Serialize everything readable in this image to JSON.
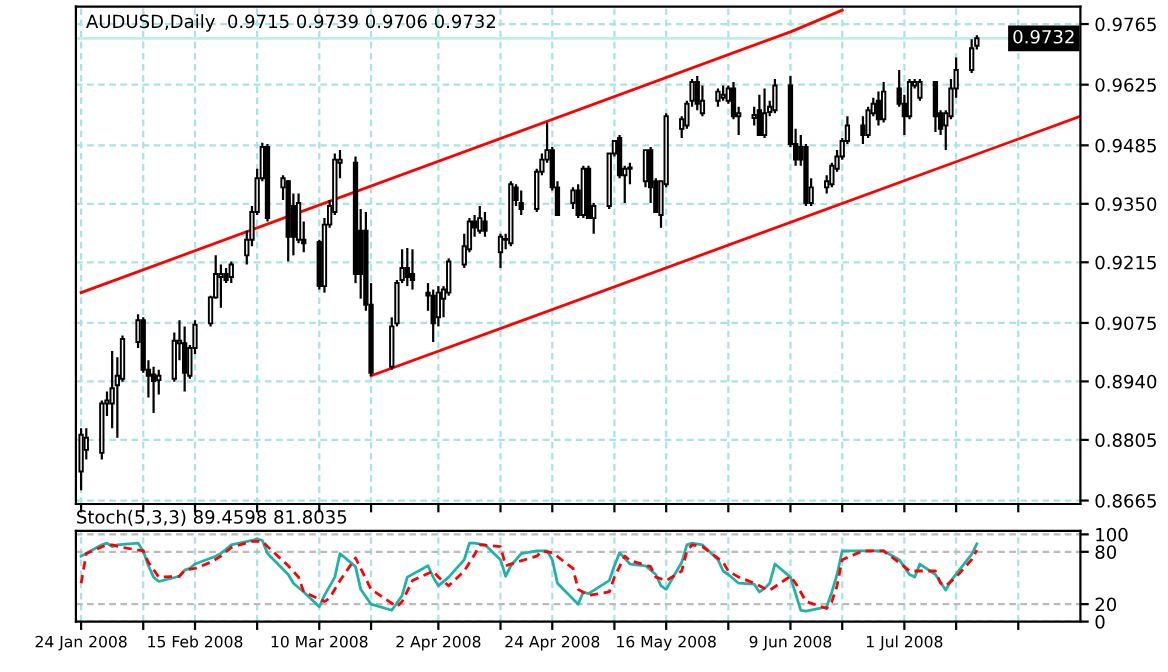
{
  "chart_data": [
    {
      "type": "candlestick",
      "title": "AUDUSD,Daily  0.9715 0.9739 0.9706 0.9732",
      "x": [
        "2008-01-24",
        "2008-01-25",
        "2008-01-28",
        "2008-01-29",
        "2008-01-30",
        "2008-01-31",
        "2008-02-01",
        "2008-02-04",
        "2008-02-05",
        "2008-02-06",
        "2008-02-07",
        "2008-02-08",
        "2008-02-11",
        "2008-02-12",
        "2008-02-13",
        "2008-02-14",
        "2008-02-15",
        "2008-02-18",
        "2008-02-19",
        "2008-02-20",
        "2008-02-21",
        "2008-02-22",
        "2008-02-25",
        "2008-02-26",
        "2008-02-27",
        "2008-02-28",
        "2008-02-29",
        "2008-03-03",
        "2008-03-04",
        "2008-03-05",
        "2008-03-06",
        "2008-03-07",
        "2008-03-10",
        "2008-03-11",
        "2008-03-12",
        "2008-03-13",
        "2008-03-14",
        "2008-03-17",
        "2008-03-18",
        "2008-03-19",
        "2008-03-20",
        "2008-03-24",
        "2008-03-25",
        "2008-03-26",
        "2008-03-27",
        "2008-03-28",
        "2008-03-31",
        "2008-04-01",
        "2008-04-02",
        "2008-04-03",
        "2008-04-04",
        "2008-04-07",
        "2008-04-08",
        "2008-04-09",
        "2008-04-10",
        "2008-04-11",
        "2008-04-14",
        "2008-04-15",
        "2008-04-16",
        "2008-04-17",
        "2008-04-18",
        "2008-04-21",
        "2008-04-22",
        "2008-04-23",
        "2008-04-24",
        "2008-04-25",
        "2008-04-28",
        "2008-04-29",
        "2008-04-30",
        "2008-05-01",
        "2008-05-02",
        "2008-05-05",
        "2008-05-06",
        "2008-05-07",
        "2008-05-08",
        "2008-05-09",
        "2008-05-12",
        "2008-05-13",
        "2008-05-14",
        "2008-05-15",
        "2008-05-16",
        "2008-05-19",
        "2008-05-20",
        "2008-05-21",
        "2008-05-22",
        "2008-05-23",
        "2008-05-26",
        "2008-05-27",
        "2008-05-28",
        "2008-05-29",
        "2008-05-30",
        "2008-06-02",
        "2008-06-03",
        "2008-06-04",
        "2008-06-05",
        "2008-06-06",
        "2008-06-09",
        "2008-06-10",
        "2008-06-11",
        "2008-06-12",
        "2008-06-13",
        "2008-06-16",
        "2008-06-17",
        "2008-06-18",
        "2008-06-19",
        "2008-06-20",
        "2008-06-23",
        "2008-06-24",
        "2008-06-25",
        "2008-06-26",
        "2008-06-27",
        "2008-06-30",
        "2008-07-01",
        "2008-07-02",
        "2008-07-03",
        "2008-07-04",
        "2008-07-07",
        "2008-07-08",
        "2008-07-09",
        "2008-07-10",
        "2008-07-11",
        "2008-07-14",
        "2008-07-15"
      ],
      "ohlc": [
        [
          0.8732,
          0.8832,
          0.8689,
          0.8817
        ],
        [
          0.8782,
          0.8832,
          0.876,
          0.881
        ],
        [
          0.8775,
          0.8896,
          0.876,
          0.8889
        ],
        [
          0.8889,
          0.8917,
          0.886,
          0.8896
        ],
        [
          0.8889,
          0.901,
          0.8832,
          0.8924
        ],
        [
          0.8931,
          0.8996,
          0.881,
          0.8953
        ],
        [
          0.8946,
          0.9046,
          0.8939,
          0.9038
        ],
        [
          0.9031,
          0.9095,
          0.9017,
          0.9081
        ],
        [
          0.9081,
          0.9088,
          0.896,
          0.8967
        ],
        [
          0.8967,
          0.8989,
          0.8903,
          0.8953
        ],
        [
          0.8956,
          0.8974,
          0.8867,
          0.8941
        ],
        [
          0.8943,
          0.8967,
          0.891,
          0.8953
        ],
        [
          0.8946,
          0.9053,
          0.8939,
          0.9034
        ],
        [
          0.9028,
          0.9081,
          0.8989,
          0.9034
        ],
        [
          0.9028,
          0.9067,
          0.8917,
          0.896
        ],
        [
          0.8953,
          0.9024,
          0.8946,
          0.9017
        ],
        [
          0.9017,
          0.9081,
          0.9003,
          0.9071
        ],
        [
          0.9074,
          0.9138,
          0.9067,
          0.9134
        ],
        [
          0.9134,
          0.9231,
          0.9131,
          0.9188
        ],
        [
          0.9181,
          0.921,
          0.911,
          0.9188
        ],
        [
          0.9188,
          0.9202,
          0.9167,
          0.9174
        ],
        [
          0.9181,
          0.9217,
          0.9167,
          0.921
        ],
        [
          0.9231,
          0.9288,
          0.921,
          0.9267
        ],
        [
          0.9267,
          0.9345,
          0.9252,
          0.9331
        ],
        [
          0.9331,
          0.9431,
          0.9324,
          0.9409
        ],
        [
          0.9409,
          0.9491,
          0.9402,
          0.9481
        ],
        [
          0.9481,
          0.9488,
          0.9309,
          0.9317
        ],
        [
          0.9388,
          0.9416,
          0.9359,
          0.9409
        ],
        [
          0.9402,
          0.9405,
          0.9217,
          0.9274
        ],
        [
          0.9345,
          0.9374,
          0.9231,
          0.9274
        ],
        [
          0.9267,
          0.9374,
          0.9259,
          0.9352
        ],
        [
          0.9267,
          0.9309,
          0.9238,
          0.9259
        ],
        [
          0.9262,
          0.9267,
          0.9152,
          0.916
        ],
        [
          0.916,
          0.9317,
          0.9145,
          0.9302
        ],
        [
          0.9302,
          0.9359,
          0.9295,
          0.9345
        ],
        [
          0.9331,
          0.9466,
          0.9324,
          0.9452
        ],
        [
          0.9445,
          0.9474,
          0.9409,
          0.9452
        ],
        [
          0.9445,
          0.9459,
          0.9167,
          0.9188
        ],
        [
          0.9288,
          0.9338,
          0.9131,
          0.9188
        ],
        [
          0.9288,
          0.9331,
          0.9103,
          0.9117
        ],
        [
          0.9117,
          0.9167,
          0.8953,
          0.896
        ],
        [
          0.8974,
          0.9088,
          0.8967,
          0.9067
        ],
        [
          0.9074,
          0.9174,
          0.9067,
          0.9167
        ],
        [
          0.9174,
          0.9245,
          0.9167,
          0.9202
        ],
        [
          0.9202,
          0.9248,
          0.916,
          0.9181
        ],
        [
          0.9188,
          0.9245,
          0.9152,
          0.9174
        ],
        [
          0.9145,
          0.9167,
          0.9103,
          0.9138
        ],
        [
          0.9138,
          0.9152,
          0.9031,
          0.9074
        ],
        [
          0.9088,
          0.916,
          0.9067,
          0.9145
        ],
        [
          0.9131,
          0.916,
          0.9088,
          0.9152
        ],
        [
          0.9145,
          0.9224,
          0.9138,
          0.9217
        ],
        [
          0.921,
          0.9281,
          0.9202,
          0.9252
        ],
        [
          0.9245,
          0.9317,
          0.9238,
          0.9309
        ],
        [
          0.9309,
          0.9324,
          0.9274,
          0.9295
        ],
        [
          0.9288,
          0.9345,
          0.9281,
          0.9317
        ],
        [
          0.9309,
          0.9331,
          0.9274,
          0.9288
        ],
        [
          0.9238,
          0.9281,
          0.9202,
          0.9274
        ],
        [
          0.9267,
          0.9281,
          0.9245,
          0.9269
        ],
        [
          0.9259,
          0.9402,
          0.9252,
          0.9395
        ],
        [
          0.9388,
          0.9395,
          0.9345,
          0.9359
        ],
        [
          0.9352,
          0.9381,
          0.9324,
          0.9338
        ],
        [
          0.9338,
          0.9431,
          0.9331,
          0.9424
        ],
        [
          0.9424,
          0.9466,
          0.9416,
          0.9452
        ],
        [
          0.9452,
          0.9538,
          0.9445,
          0.9474
        ],
        [
          0.9474,
          0.9481,
          0.9381,
          0.9388
        ],
        [
          0.9388,
          0.9402,
          0.9324,
          0.9324
        ],
        [
          0.9352,
          0.9388,
          0.9338,
          0.9381
        ],
        [
          0.9381,
          0.9395,
          0.9317,
          0.9324
        ],
        [
          0.9324,
          0.9438,
          0.9317,
          0.9431
        ],
        [
          0.9431,
          0.9438,
          0.9317,
          0.9317
        ],
        [
          0.9317,
          0.9352,
          0.9281,
          0.9345
        ],
        [
          0.9345,
          0.9466,
          0.9338,
          0.9466
        ],
        [
          0.9466,
          0.9495,
          0.9459,
          0.9495
        ],
        [
          0.9502,
          0.9509,
          0.9409,
          0.9416
        ],
        [
          0.9416,
          0.9438,
          0.9352,
          0.9431
        ],
        [
          0.9431,
          0.9445,
          0.9395,
          0.9434
        ],
        [
          0.9402,
          0.9474,
          0.9388,
          0.9474
        ],
        [
          0.9474,
          0.9481,
          0.9352,
          0.9388
        ],
        [
          0.9402,
          0.9409,
          0.9331,
          0.9331
        ],
        [
          0.9324,
          0.9402,
          0.9295,
          0.9402
        ],
        [
          0.9395,
          0.9559,
          0.9388,
          0.9552
        ],
        [
          0.9523,
          0.9552,
          0.9502,
          0.9545
        ],
        [
          0.9531,
          0.9588,
          0.9523,
          0.9581
        ],
        [
          0.9588,
          0.9638,
          0.9574,
          0.9631
        ],
        [
          0.9631,
          0.9645,
          0.9566,
          0.9581
        ],
        [
          0.9559,
          0.9623,
          0.9552,
          0.9588
        ],
        [
          0.9588,
          0.9616,
          0.9574,
          0.9609
        ],
        [
          0.9595,
          0.9623,
          0.9588,
          0.9602
        ],
        [
          0.9588,
          0.9623,
          0.9581,
          0.9616
        ],
        [
          0.9616,
          0.9631,
          0.9545,
          0.9552
        ],
        [
          0.9552,
          0.9574,
          0.9509,
          0.9559
        ],
        [
          0.9548,
          0.9574,
          0.9531,
          0.9555
        ],
        [
          0.9566,
          0.9602,
          0.9509,
          0.9509
        ],
        [
          0.9509,
          0.9616,
          0.9502,
          0.9559
        ],
        [
          0.9562,
          0.9588,
          0.9552,
          0.9574
        ],
        [
          0.9566,
          0.9638,
          0.9559,
          0.9623
        ],
        [
          0.9623,
          0.9645,
          0.9481,
          0.9488
        ],
        [
          0.9488,
          0.9523,
          0.9438,
          0.9452
        ],
        [
          0.9481,
          0.9509,
          0.9438,
          0.9452
        ],
        [
          0.9481,
          0.9488,
          0.9345,
          0.9352
        ],
        [
          0.9352,
          0.9409,
          0.9345,
          0.9388
        ],
        [
          0.9388,
          0.9416,
          0.9374,
          0.9402
        ],
        [
          0.9395,
          0.9445,
          0.9388,
          0.9438
        ],
        [
          0.9431,
          0.9474,
          0.9424,
          0.9459
        ],
        [
          0.9459,
          0.9502,
          0.9452,
          0.9495
        ],
        [
          0.9495,
          0.9552,
          0.9488,
          0.9531
        ],
        [
          0.9531,
          0.9552,
          0.9488,
          0.9509
        ],
        [
          0.9509,
          0.9574,
          0.9502,
          0.9566
        ],
        [
          0.9559,
          0.9595,
          0.9552,
          0.9581
        ],
        [
          0.9588,
          0.9609,
          0.9531,
          0.9545
        ],
        [
          0.9545,
          0.9631,
          0.9538,
          0.9609
        ],
        [
          0.9616,
          0.9659,
          0.9574,
          0.9581
        ],
        [
          0.9581,
          0.9602,
          0.9509,
          0.9552
        ],
        [
          0.9552,
          0.9638,
          0.9545,
          0.9631
        ],
        [
          0.9623,
          0.9638,
          0.9616,
          0.9631
        ],
        [
          0.9595,
          0.9638,
          0.9588,
          0.9631
        ],
        [
          0.9631,
          0.9633,
          0.9516,
          0.9552
        ],
        [
          0.9559,
          0.9566,
          0.9509,
          0.9523
        ],
        [
          0.9531,
          0.9566,
          0.9474,
          0.9559
        ],
        [
          0.9552,
          0.9638,
          0.9545,
          0.9616
        ],
        [
          0.9616,
          0.9688,
          0.9595,
          0.9659
        ],
        [
          0.9659,
          0.973,
          0.9652,
          0.9709
        ],
        [
          0.9715,
          0.9739,
          0.9706,
          0.9732
        ]
      ],
      "series": [
        {
          "type": "line",
          "color": "#ff0000",
          "x": [
            "2008-01-24",
            "2008-06-09",
            "2008-06-19"
          ],
          "values": [
            0.9145,
            0.9747,
            0.9797
          ]
        },
        {
          "type": "line",
          "color": "#ff0000",
          "x": [
            "2008-03-20",
            "2008-08-04"
          ],
          "values": [
            0.8953,
            0.9552
          ]
        }
      ],
      "ref_lines": [
        {
          "axis": "y",
          "value": 0.9732,
          "label": "0.9732",
          "color": "#c0ecec"
        }
      ],
      "xlim": [
        "2008-01-23",
        "2008-08-04"
      ],
      "xticks": [
        {
          "value": "2008-01-24",
          "label": null
        },
        {
          "value": "2008-02-05",
          "label": null
        },
        {
          "value": "2008-02-15",
          "label": null
        },
        {
          "value": "2008-02-27",
          "label": null
        },
        {
          "value": "2008-03-10",
          "label": null
        },
        {
          "value": "2008-03-20",
          "label": null
        },
        {
          "value": "2008-04-02",
          "label": null
        },
        {
          "value": "2008-04-14",
          "label": null
        },
        {
          "value": "2008-04-24",
          "label": null
        },
        {
          "value": "2008-05-06",
          "label": null
        },
        {
          "value": "2008-05-16",
          "label": null
        },
        {
          "value": "2008-05-28",
          "label": null
        },
        {
          "value": "2008-06-09",
          "label": null
        },
        {
          "value": "2008-06-19",
          "label": null
        },
        {
          "value": "2008-07-01",
          "label": null
        },
        {
          "value": "2008-07-11",
          "label": null
        },
        {
          "value": "2008-07-23",
          "label": null
        }
      ],
      "ylim": [
        0.8657,
        0.9805
      ],
      "yticks": [
        0.9765,
        0.9625,
        0.9485,
        {
          "value": 0.935,
          "label": "0.9350"
        },
        0.9215,
        0.9075,
        {
          "value": 0.894,
          "label": "0.8940"
        },
        0.8805,
        0.8665
      ],
      "grid": true,
      "tick_labels": "y"
    },
    {
      "type": "line",
      "title": "Stoch(5,3,3) 89.4598 81.8035",
      "series": [
        {
          "color": "#20b2aa",
          "line_style": "solid",
          "x": [
            "2008-01-24",
            "2008-01-28",
            "2008-01-29",
            "2008-01-30",
            "2008-01-31",
            "2008-02-04",
            "2008-02-05",
            "2008-02-06",
            "2008-02-07",
            "2008-02-08",
            "2008-02-12",
            "2008-02-13",
            "2008-02-14",
            "2008-02-15",
            "2008-02-19",
            "2008-02-20",
            "2008-02-22",
            "2008-02-26",
            "2008-02-27",
            "2008-02-28",
            "2008-02-29",
            "2008-03-04",
            "2008-03-05",
            "2008-03-07",
            "2008-03-10",
            "2008-03-11",
            "2008-03-13",
            "2008-03-14",
            "2008-03-17",
            "2008-03-18",
            "2008-03-20",
            "2008-03-24",
            "2008-03-26",
            "2008-03-27",
            "2008-03-31",
            "2008-04-01",
            "2008-04-02",
            "2008-04-04",
            "2008-04-07",
            "2008-04-08",
            "2008-04-09",
            "2008-04-11",
            "2008-04-14",
            "2008-04-15",
            "2008-04-16",
            "2008-04-18",
            "2008-04-21",
            "2008-04-23",
            "2008-04-24",
            "2008-04-25",
            "2008-04-29",
            "2008-04-30",
            "2008-05-01",
            "2008-05-05",
            "2008-05-06",
            "2008-05-07",
            "2008-05-09",
            "2008-05-12",
            "2008-05-14",
            "2008-05-15",
            "2008-05-16",
            "2008-05-19",
            "2008-05-20",
            "2008-05-21",
            "2008-05-23",
            "2008-05-26",
            "2008-05-27",
            "2008-05-28",
            "2008-05-30",
            "2008-06-02",
            "2008-06-03",
            "2008-06-04",
            "2008-06-05",
            "2008-06-06",
            "2008-06-09",
            "2008-06-11",
            "2008-06-12",
            "2008-06-16",
            "2008-06-17",
            "2008-06-18",
            "2008-06-19",
            "2008-06-23",
            "2008-06-24",
            "2008-06-25",
            "2008-06-27",
            "2008-06-30",
            "2008-07-02",
            "2008-07-03",
            "2008-07-04",
            "2008-07-07",
            "2008-07-09",
            "2008-07-10",
            "2008-07-14",
            "2008-07-15"
          ],
          "values": [
            75,
            88,
            90,
            86,
            88,
            90,
            81,
            64,
            51,
            46,
            52,
            59,
            61,
            66,
            75,
            78,
            88,
            93,
            95,
            93,
            78,
            54,
            44,
            34,
            17,
            30,
            51,
            78,
            63,
            37,
            20,
            13,
            30,
            51,
            64,
            51,
            41,
            51,
            71,
            90,
            90,
            88,
            71,
            52,
            64,
            78,
            81,
            81,
            71,
            44,
            20,
            34,
            32,
            47,
            64,
            79,
            66,
            64,
            54,
            41,
            37,
            68,
            88,
            90,
            88,
            71,
            58,
            54,
            44,
            43,
            34,
            38,
            44,
            66,
            51,
            13,
            12,
            17,
            34,
            54,
            81,
            81,
            81,
            81,
            81,
            71,
            54,
            51,
            66,
            54,
            36,
            47,
            77,
            89
          ]
        },
        {
          "color": "#ff0000",
          "line_style": "dashed",
          "x": [
            "2008-01-24",
            "2008-01-25",
            "2008-01-29",
            "2008-01-30",
            "2008-02-01",
            "2008-02-05",
            "2008-02-06",
            "2008-02-08",
            "2008-02-12",
            "2008-02-13",
            "2008-02-15",
            "2008-02-18",
            "2008-02-20",
            "2008-02-22",
            "2008-02-26",
            "2008-02-28",
            "2008-02-29",
            "2008-03-04",
            "2008-03-06",
            "2008-03-07",
            "2008-03-11",
            "2008-03-12",
            "2008-03-14",
            "2008-03-17",
            "2008-03-18",
            "2008-03-20",
            "2008-03-25",
            "2008-03-26",
            "2008-03-28",
            "2008-04-01",
            "2008-04-02",
            "2008-04-04",
            "2008-04-07",
            "2008-04-09",
            "2008-04-10",
            "2008-04-14",
            "2008-04-15",
            "2008-04-17",
            "2008-04-21",
            "2008-04-22",
            "2008-04-24",
            "2008-04-28",
            "2008-04-29",
            "2008-05-01",
            "2008-05-05",
            "2008-05-06",
            "2008-05-08",
            "2008-05-09",
            "2008-05-13",
            "2008-05-14",
            "2008-05-16",
            "2008-05-19",
            "2008-05-20",
            "2008-05-21",
            "2008-05-23",
            "2008-05-27",
            "2008-05-28",
            "2008-05-30",
            "2008-06-02",
            "2008-06-04",
            "2008-06-05",
            "2008-06-09",
            "2008-06-10",
            "2008-06-12",
            "2008-06-16",
            "2008-06-17",
            "2008-06-18",
            "2008-06-19",
            "2008-06-23",
            "2008-06-25",
            "2008-06-27",
            "2008-07-01",
            "2008-07-02",
            "2008-07-07",
            "2008-07-08",
            "2008-07-09",
            "2008-07-11",
            "2008-07-14",
            "2008-07-15"
          ],
          "values": [
            44,
            78,
            88,
            88,
            85,
            81,
            68,
            51,
            52,
            59,
            61,
            68,
            75,
            85,
            92,
            92,
            86,
            64,
            51,
            34,
            23,
            27,
            47,
            73,
            61,
            37,
            17,
            23,
            47,
            58,
            51,
            41,
            58,
            77,
            88,
            86,
            64,
            68,
            75,
            81,
            79,
            61,
            37,
            30,
            34,
            51,
            75,
            70,
            63,
            51,
            47,
            58,
            81,
            88,
            86,
            68,
            58,
            51,
            44,
            38,
            36,
            52,
            44,
            23,
            15,
            23,
            41,
            71,
            81,
            81,
            81,
            63,
            58,
            58,
            44,
            41,
            51,
            71,
            82
          ]
        }
      ],
      "xlim": [
        "2008-01-23",
        "2008-08-04"
      ],
      "xticks": [
        {
          "value": "2008-01-24",
          "label": "24 Jan 2008"
        },
        {
          "value": "2008-02-05",
          "label": null
        },
        {
          "value": "2008-02-15",
          "label": "15 Feb 2008"
        },
        {
          "value": "2008-02-27",
          "label": null
        },
        {
          "value": "2008-03-10",
          "label": "10 Mar 2008"
        },
        {
          "value": "2008-03-20",
          "label": null
        },
        {
          "value": "2008-04-02",
          "label": "2 Apr 2008"
        },
        {
          "value": "2008-04-14",
          "label": null
        },
        {
          "value": "2008-04-24",
          "label": "24 Apr 2008"
        },
        {
          "value": "2008-05-06",
          "label": null
        },
        {
          "value": "2008-05-16",
          "label": "16 May 2008"
        },
        {
          "value": "2008-05-28",
          "label": null
        },
        {
          "value": "2008-06-09",
          "label": "9 Jun 2008"
        },
        {
          "value": "2008-06-19",
          "label": null
        },
        {
          "value": "2008-07-01",
          "label": "1 Jul 2008"
        },
        {
          "value": "2008-07-11",
          "label": null
        },
        {
          "value": "2008-07-23",
          "label": null
        }
      ],
      "ylim": [
        0,
        104
      ],
      "yticks": [
        0,
        20,
        80,
        100
      ],
      "grid": true
    }
  ]
}
